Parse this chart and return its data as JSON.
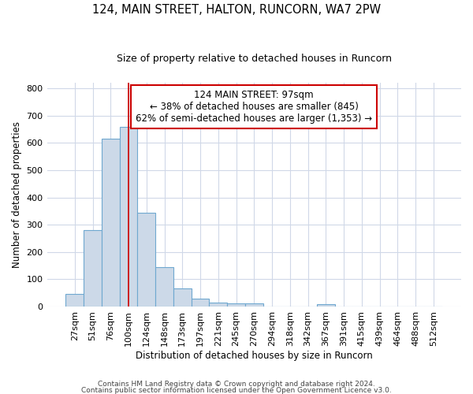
{
  "title": "124, MAIN STREET, HALTON, RUNCORN, WA7 2PW",
  "subtitle": "Size of property relative to detached houses in Runcorn",
  "xlabel": "Distribution of detached houses by size in Runcorn",
  "ylabel": "Number of detached properties",
  "bar_labels": [
    "27sqm",
    "51sqm",
    "76sqm",
    "100sqm",
    "124sqm",
    "148sqm",
    "173sqm",
    "197sqm",
    "221sqm",
    "245sqm",
    "270sqm",
    "294sqm",
    "318sqm",
    "342sqm",
    "367sqm",
    "391sqm",
    "415sqm",
    "439sqm",
    "464sqm",
    "488sqm",
    "512sqm"
  ],
  "bar_values": [
    45,
    280,
    615,
    660,
    345,
    145,
    65,
    30,
    15,
    10,
    10,
    0,
    0,
    0,
    8,
    0,
    0,
    0,
    0,
    0,
    0
  ],
  "bar_color": "#ccd9e8",
  "bar_edge_color": "#6fa8d0",
  "vline_color": "#cc0000",
  "annotation_text": "124 MAIN STREET: 97sqm\n← 38% of detached houses are smaller (845)\n62% of semi-detached houses are larger (1,353) →",
  "annotation_box_color": "white",
  "annotation_box_edge": "#cc0000",
  "ylim": [
    0,
    820
  ],
  "yticks": [
    0,
    100,
    200,
    300,
    400,
    500,
    600,
    700,
    800
  ],
  "footer_line1": "Contains HM Land Registry data © Crown copyright and database right 2024.",
  "footer_line2": "Contains public sector information licensed under the Open Government Licence v3.0.",
  "bg_color": "#ffffff",
  "plot_bg_color": "#ffffff",
  "grid_color": "#d0d8e8"
}
